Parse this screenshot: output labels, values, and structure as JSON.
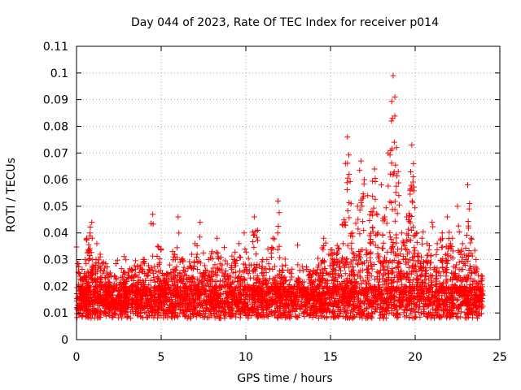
{
  "chart_data": {
    "type": "scatter",
    "title": "Day 044 of 2023, Rate Of TEC Index for receiver p014",
    "xlabel": "GPS time / hours",
    "ylabel": "ROTI / TECUs",
    "xlim": [
      0,
      25
    ],
    "ylim": [
      0,
      0.11
    ],
    "xticks": [
      0,
      5,
      10,
      15,
      20,
      25
    ],
    "xtick_labels": [
      "0",
      "5",
      "10",
      "15",
      "20",
      "25"
    ],
    "yticks": [
      0,
      0.01,
      0.02,
      0.03,
      0.04,
      0.05,
      0.06,
      0.07,
      0.08,
      0.09,
      0.1,
      0.11
    ],
    "ytick_labels": [
      "0",
      "0.01",
      "0.02",
      "0.03",
      "0.04",
      "0.05",
      "0.06",
      "0.07",
      "0.08",
      "0.09",
      "0.1",
      "0.11"
    ],
    "grid": true,
    "marker": "+",
    "marker_color": "#ff0000",
    "data_range_hours": [
      0,
      24
    ],
    "series": [
      {
        "name": "ROTI",
        "points": [
          [
            0.1,
            0.012
          ],
          [
            0.3,
            0.018
          ],
          [
            0.5,
            0.03
          ],
          [
            0.6,
            0.038
          ],
          [
            0.8,
            0.04
          ],
          [
            0.9,
            0.044
          ],
          [
            1.0,
            0.022
          ],
          [
            1.2,
            0.036
          ],
          [
            1.4,
            0.032
          ],
          [
            1.6,
            0.029
          ],
          [
            1.8,
            0.025
          ],
          [
            2.0,
            0.02
          ],
          [
            2.2,
            0.015
          ],
          [
            2.5,
            0.018
          ],
          [
            2.8,
            0.022
          ],
          [
            3.0,
            0.016
          ],
          [
            3.3,
            0.02
          ],
          [
            3.5,
            0.024
          ],
          [
            3.8,
            0.028
          ],
          [
            4.0,
            0.03
          ],
          [
            4.3,
            0.026
          ],
          [
            4.5,
            0.047
          ],
          [
            4.8,
            0.035
          ],
          [
            5.0,
            0.034
          ],
          [
            5.2,
            0.022
          ],
          [
            5.5,
            0.028
          ],
          [
            5.8,
            0.032
          ],
          [
            6.0,
            0.046
          ],
          [
            6.2,
            0.03
          ],
          [
            6.5,
            0.024
          ],
          [
            6.8,
            0.032
          ],
          [
            7.0,
            0.036
          ],
          [
            7.3,
            0.044
          ],
          [
            7.5,
            0.025
          ],
          [
            7.8,
            0.03
          ],
          [
            8.0,
            0.033
          ],
          [
            8.3,
            0.038
          ],
          [
            8.6,
            0.028
          ],
          [
            9.0,
            0.024
          ],
          [
            9.3,
            0.03
          ],
          [
            9.6,
            0.036
          ],
          [
            9.9,
            0.04
          ],
          [
            10.2,
            0.028
          ],
          [
            10.5,
            0.046
          ],
          [
            10.7,
            0.041
          ],
          [
            11.0,
            0.03
          ],
          [
            11.3,
            0.034
          ],
          [
            11.6,
            0.038
          ],
          [
            11.9,
            0.052
          ],
          [
            12.2,
            0.026
          ],
          [
            12.5,
            0.02
          ],
          [
            12.8,
            0.018
          ],
          [
            13.1,
            0.022
          ],
          [
            13.4,
            0.019
          ],
          [
            13.7,
            0.024
          ],
          [
            14.0,
            0.026
          ],
          [
            14.3,
            0.028
          ],
          [
            14.6,
            0.038
          ],
          [
            14.9,
            0.032
          ],
          [
            15.2,
            0.03
          ],
          [
            15.5,
            0.034
          ],
          [
            15.8,
            0.045
          ],
          [
            16.0,
            0.076
          ],
          [
            16.1,
            0.062
          ],
          [
            16.3,
            0.04
          ],
          [
            16.6,
            0.05
          ],
          [
            16.8,
            0.067
          ],
          [
            17.0,
            0.06
          ],
          [
            17.2,
            0.054
          ],
          [
            17.4,
            0.048
          ],
          [
            17.6,
            0.064
          ],
          [
            17.8,
            0.04
          ],
          [
            18.0,
            0.058
          ],
          [
            18.2,
            0.046
          ],
          [
            18.4,
            0.07
          ],
          [
            18.6,
            0.082
          ],
          [
            18.7,
            0.099
          ],
          [
            18.8,
            0.091
          ],
          [
            18.9,
            0.072
          ],
          [
            19.0,
            0.063
          ],
          [
            19.2,
            0.04
          ],
          [
            19.5,
            0.046
          ],
          [
            19.7,
            0.056
          ],
          [
            19.8,
            0.073
          ],
          [
            19.9,
            0.066
          ],
          [
            20.1,
            0.04
          ],
          [
            20.4,
            0.038
          ],
          [
            20.7,
            0.036
          ],
          [
            21.0,
            0.044
          ],
          [
            21.3,
            0.036
          ],
          [
            21.6,
            0.04
          ],
          [
            21.9,
            0.046
          ],
          [
            22.2,
            0.038
          ],
          [
            22.5,
            0.05
          ],
          [
            22.8,
            0.036
          ],
          [
            23.0,
            0.03
          ],
          [
            23.1,
            0.058
          ],
          [
            23.3,
            0.038
          ],
          [
            23.6,
            0.03
          ],
          [
            23.9,
            0.024
          ]
        ]
      }
    ]
  }
}
